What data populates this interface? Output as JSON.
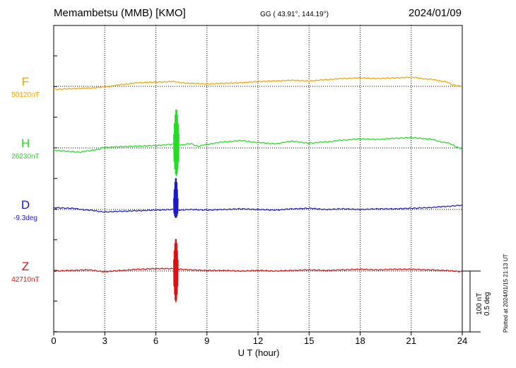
{
  "header": {
    "title": "Memambetsu (MMB)  [KMO]",
    "coords": "GG ( 43.91°, 144.19°)",
    "date": "2024/01/09"
  },
  "footer": {
    "plotted": "Plotted at 2024/01/15 21:13 UT",
    "scale_nt": "100 nT",
    "scale_deg": "0.5 deg"
  },
  "colors": {
    "F": "#f5a300",
    "H": "#22dd22",
    "D": "#1a1acc",
    "Z": "#dd1111"
  },
  "chart_data": {
    "type": "line",
    "title": "Memambetsu (MMB)  [KMO]",
    "xlabel": "U T (hour)",
    "ylabel": "",
    "xlim": [
      0,
      24
    ],
    "x_ticks": [
      0,
      3,
      6,
      9,
      12,
      15,
      18,
      21,
      24
    ],
    "grid": true,
    "scale_bar": {
      "nT": 100,
      "deg": 0.5
    },
    "series": [
      {
        "name": "F",
        "baseline": "50120nT",
        "x": [
          0,
          1,
          2,
          3,
          4,
          5,
          6,
          7,
          7.5,
          8,
          9,
          10,
          11,
          12,
          13,
          14,
          15,
          16,
          17,
          18,
          19,
          20,
          21,
          22,
          23,
          23.5,
          24
        ],
        "y": [
          -5,
          -4,
          -3,
          -1,
          3,
          6,
          7,
          8,
          6,
          5,
          4,
          5,
          6,
          8,
          9,
          10,
          9,
          11,
          13,
          14,
          13,
          14,
          15,
          12,
          8,
          2,
          0
        ],
        "spike": null
      },
      {
        "name": "H",
        "baseline": "26230nT",
        "x": [
          0,
          0.5,
          1,
          1.5,
          2,
          2.5,
          3,
          4,
          5,
          6,
          7,
          7.5,
          8,
          8.5,
          9,
          10,
          11,
          12,
          13,
          14,
          15,
          16,
          17,
          18,
          19,
          20,
          21,
          22,
          23,
          24
        ],
        "y": [
          -4,
          -5,
          -6,
          -7,
          -5,
          -3,
          1,
          2,
          3,
          4,
          6,
          5,
          7,
          3,
          6,
          10,
          12,
          9,
          7,
          11,
          8,
          10,
          13,
          15,
          14,
          16,
          17,
          15,
          9,
          -1
        ],
        "spike": {
          "x": [
            7.05,
            7.35
          ],
          "range": [
            -40,
            55
          ]
        }
      },
      {
        "name": "D",
        "baseline": "-9.3deg",
        "x": [
          0,
          1,
          2,
          3,
          4,
          5,
          6,
          7,
          7.5,
          8,
          9,
          10,
          11,
          12,
          13,
          14,
          15,
          16,
          17,
          18,
          19,
          20,
          21,
          22,
          23,
          24
        ],
        "y": [
          3,
          2,
          -1,
          -4,
          -3,
          -2,
          -1,
          0,
          -1,
          0,
          -1,
          0,
          1,
          0,
          -1,
          1,
          2,
          0,
          1,
          0,
          1,
          1,
          2,
          3,
          5,
          7
        ],
        "spike": {
          "x": [
            7.05,
            7.3
          ],
          "range": [
            -12,
            45
          ]
        }
      },
      {
        "name": "Z",
        "baseline": "42710nT",
        "x": [
          0,
          1,
          2,
          3,
          4,
          5,
          6,
          7,
          7.5,
          8,
          9,
          10,
          11,
          12,
          13,
          14,
          15,
          16,
          17,
          18,
          19,
          20,
          21,
          22,
          23,
          24
        ],
        "y": [
          0,
          1,
          2,
          -1,
          1,
          3,
          4,
          4,
          3,
          2,
          1,
          1,
          0,
          1,
          0,
          1,
          2,
          1,
          2,
          3,
          2,
          3,
          3,
          2,
          1,
          -1
        ],
        "spike": {
          "x": [
            7.05,
            7.3
          ],
          "range": [
            -44,
            46
          ]
        }
      }
    ]
  }
}
